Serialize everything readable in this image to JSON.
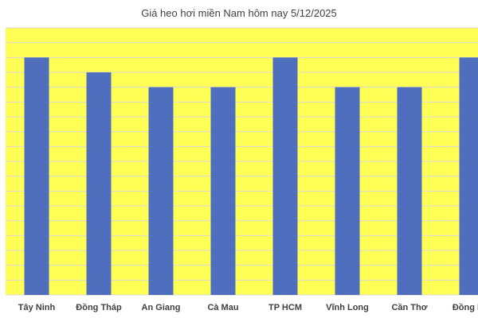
{
  "chart_data": {
    "type": "bar",
    "title": "Giá heo hơi miền Nam hôm nay 5/12/2025",
    "categories": [
      "Tây Ninh",
      "Đồng Tháp",
      "An Giang",
      "Cà Mau",
      "TP HCM",
      "Vĩnh Long",
      "Cần Thơ",
      "Đồng Nai"
    ],
    "values": [
      16,
      15,
      14,
      14,
      16,
      14,
      14,
      16
    ],
    "ylim": [
      0,
      18
    ],
    "grid": true,
    "y_tick_labels_shown": false,
    "colors": {
      "bar": "#4f6fbe",
      "plot_background": "#ffff55",
      "grid": "#d9d9d9"
    }
  }
}
